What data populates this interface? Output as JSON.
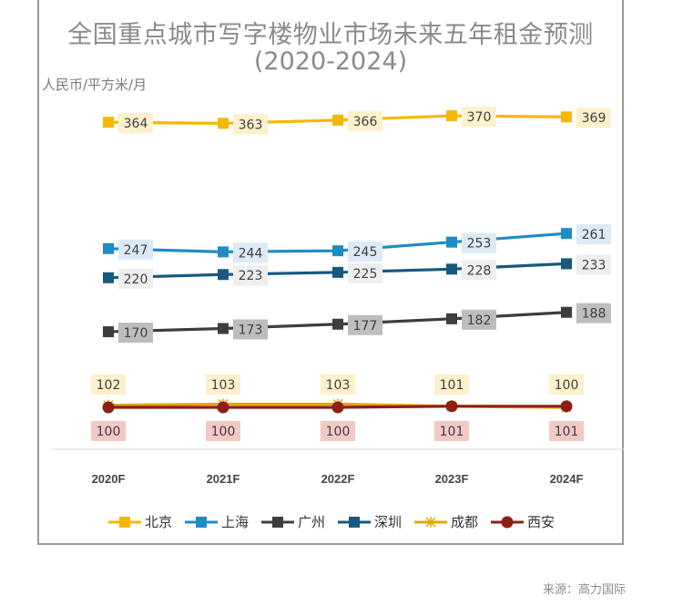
{
  "page": {
    "title_line1": "全国重点城市写字楼物业市场未来五年租金预测",
    "title_line2": "(2020-2024)",
    "unit": "人民币/平方米/月",
    "source": "来源：高力国际"
  },
  "chart_data": {
    "type": "line",
    "title": "全国重点城市写字楼物业市场未来五年租金预测 (2020-2024)",
    "ylabel": "人民币/平方米/月",
    "xlabel": "",
    "categories": [
      "2020F",
      "2021F",
      "2022F",
      "2023F",
      "2024F"
    ],
    "legend_position": "bottom",
    "grid": false,
    "series": [
      {
        "name": "北京",
        "values": [
          364,
          363,
          366,
          370,
          369
        ],
        "color": "#f5b800",
        "marker": "square",
        "label_bg": "#fdf0cc",
        "label_pos": "right"
      },
      {
        "name": "上海",
        "values": [
          247,
          244,
          245,
          253,
          261
        ],
        "color": "#1f8cc4",
        "marker": "square",
        "label_bg": "#dbeaf6",
        "label_pos": "right"
      },
      {
        "name": "广州",
        "values": [
          170,
          173,
          177,
          182,
          188
        ],
        "color": "#3d3d3d",
        "marker": "square",
        "label_bg": "#bdbdbd",
        "label_pos": "right"
      },
      {
        "name": "深圳",
        "values": [
          220,
          223,
          225,
          228,
          233
        ],
        "color": "#18587e",
        "marker": "square",
        "label_bg": "#eeeeee",
        "label_pos": "right"
      },
      {
        "name": "成都",
        "values": [
          102,
          103,
          103,
          101,
          100
        ],
        "color": "#e0a800",
        "marker": "star",
        "label_bg": "#fdf0cc",
        "label_pos": "above"
      },
      {
        "name": "西安",
        "values": [
          100,
          100,
          100,
          101,
          101
        ],
        "color": "#8e1f12",
        "marker": "circle",
        "label_bg": "#f4c9c4",
        "label_pos": "below"
      }
    ]
  }
}
